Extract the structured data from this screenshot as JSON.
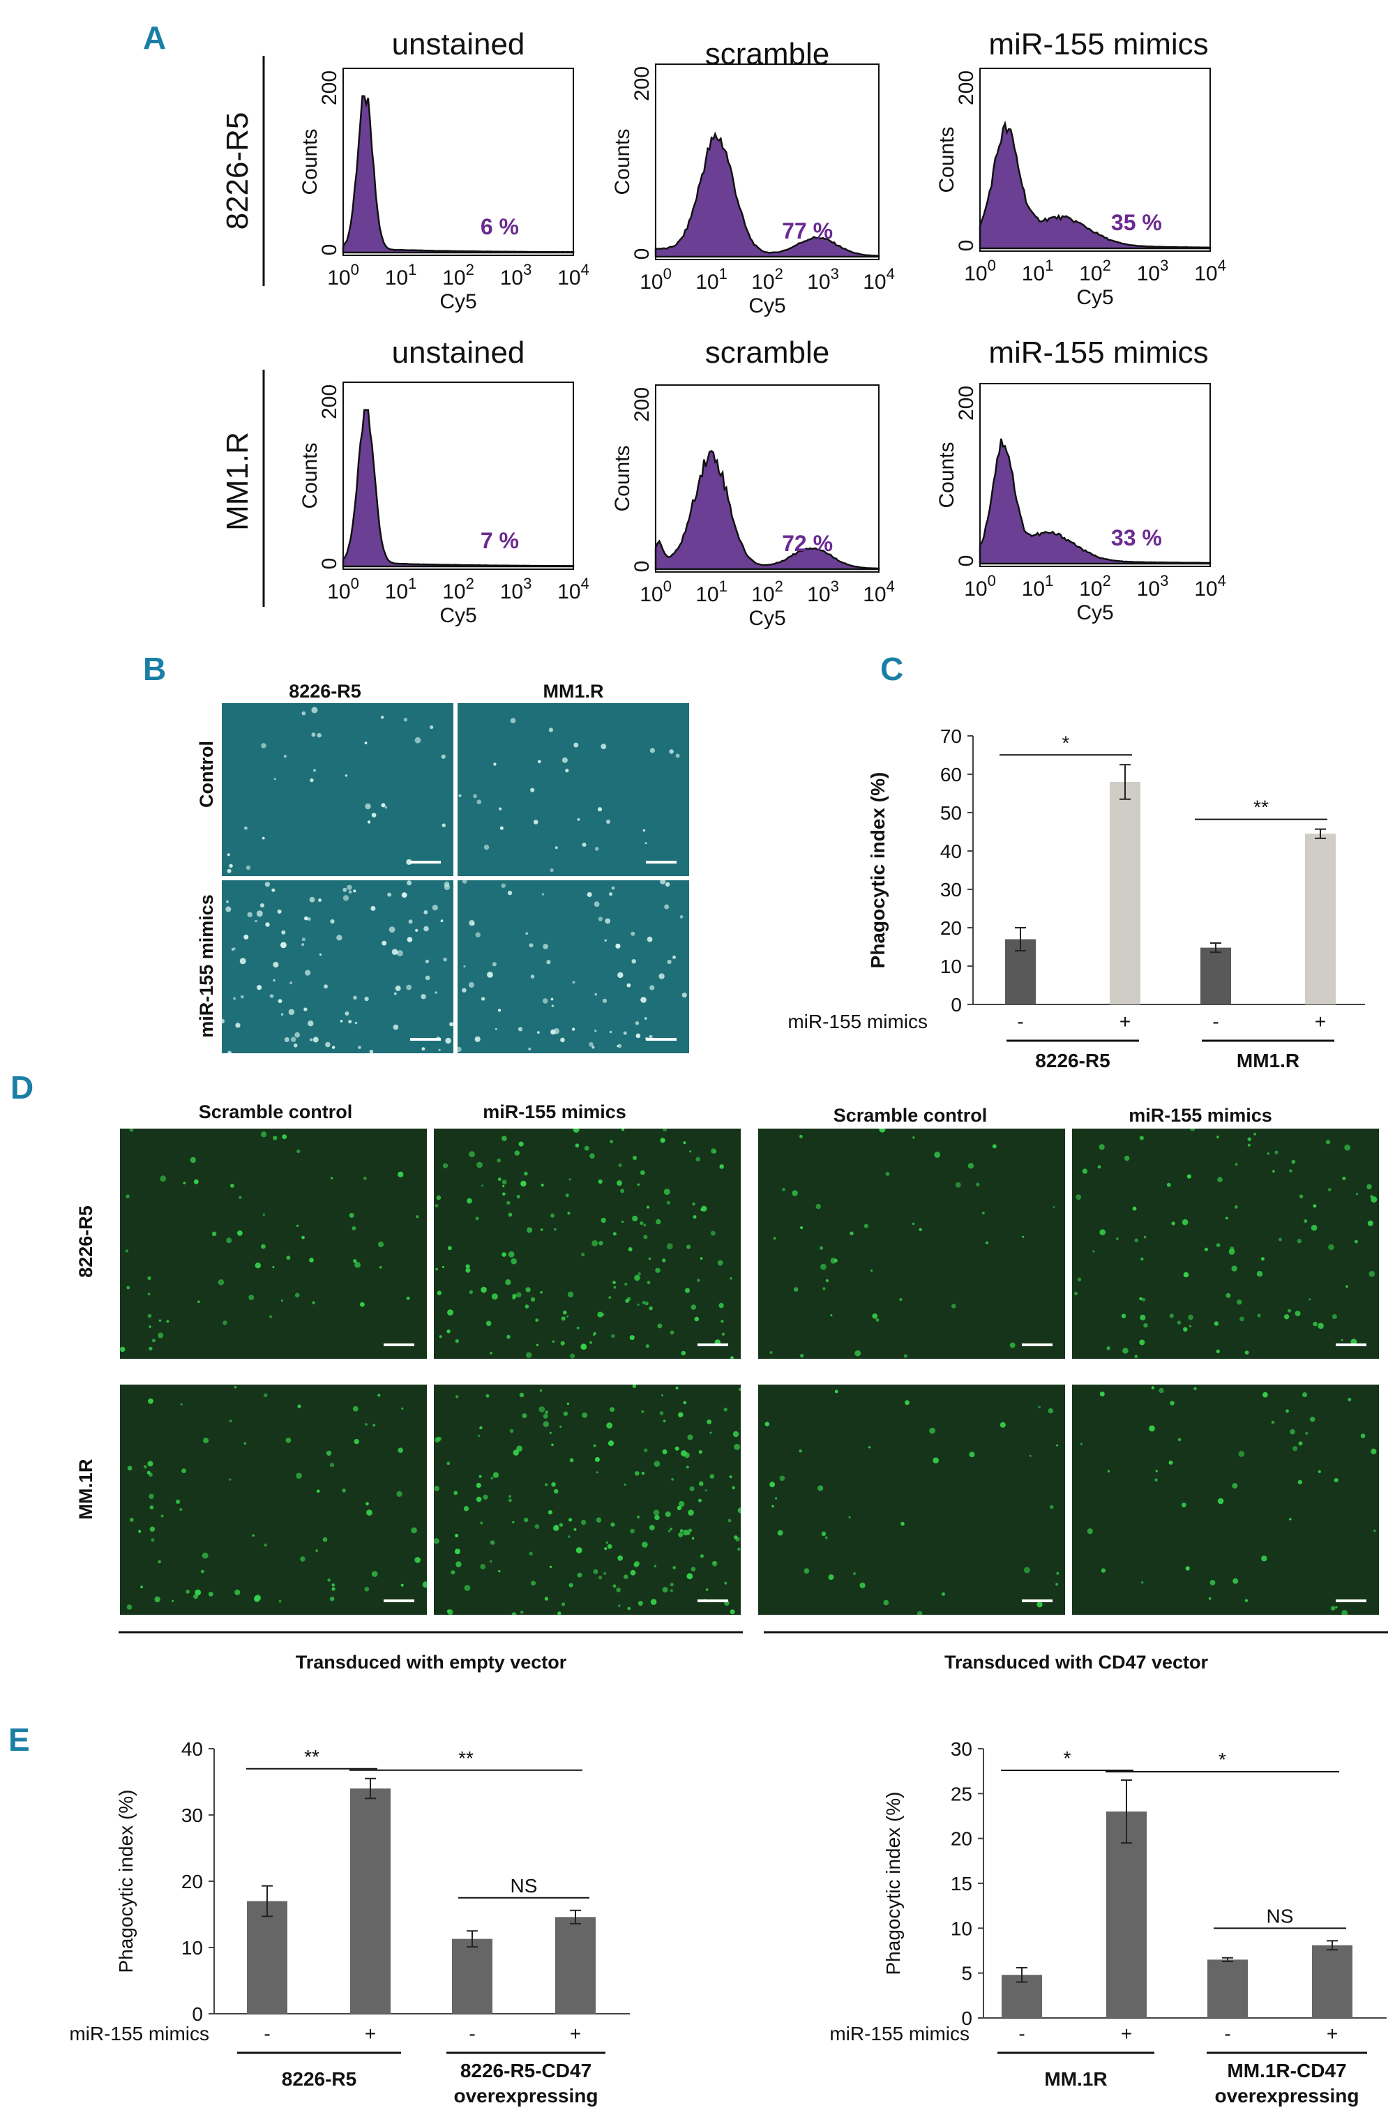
{
  "panel_labels": {
    "a": "A",
    "b": "B",
    "c": "C",
    "d": "D",
    "e": "E"
  },
  "panel_a": {
    "x_label": "Cy5",
    "y_label": "Counts",
    "y_ticks": [
      "0",
      "200"
    ],
    "x_ticks": [
      "0",
      "1",
      "2",
      "3",
      "4"
    ],
    "x_tick_base": "10",
    "histograms": [
      {
        "row": "8226-R5",
        "title": "unstained",
        "percent": "6 %"
      },
      {
        "row": "8226-R5",
        "title": "scramble",
        "percent": "77 %"
      },
      {
        "row": "8226-R5",
        "title": "miR-155 mimics",
        "percent": "35 %"
      },
      {
        "row": "MM1.R",
        "title": "unstained",
        "percent": "7 %"
      },
      {
        "row": "MM1.R",
        "title": "scramble",
        "percent": "72 %"
      },
      {
        "row": "MM1.R",
        "title": "miR-155 mimics",
        "percent": "33 %"
      }
    ],
    "rows": [
      "8226-R5",
      "MM1.R"
    ]
  },
  "panel_b": {
    "columns": [
      "8226-R5",
      "MM1.R"
    ],
    "rows": [
      "Control",
      "miR-155 mimics"
    ],
    "image_tint": "#1f6f78"
  },
  "panel_d": {
    "columns": [
      "Scramble control",
      "miR-155 mimics",
      "Scramble control",
      "miR-155 mimics"
    ],
    "rows": [
      "8226-R5",
      "MM.1R"
    ],
    "groups": [
      "Transduced with empty vector",
      "Transduced with CD47 vector"
    ],
    "image_tint": "#16341a"
  },
  "chart_data": [
    {
      "id": "C",
      "type": "bar",
      "ylabel": "Phagocytic index (%)",
      "ylim": [
        0,
        70
      ],
      "yticks": [
        0,
        10,
        20,
        30,
        40,
        50,
        60,
        70
      ],
      "row_label": "miR-155 mimics",
      "categories": [
        "-",
        "+",
        "-",
        "+"
      ],
      "groups": [
        "8226-R5",
        "MM1.R"
      ],
      "values": [
        17,
        58,
        14.8,
        44.5
      ],
      "errors": [
        3,
        4.5,
        1.2,
        1.2
      ],
      "colors": [
        "#595959",
        "#d0ccc6",
        "#595959",
        "#d0ccc6"
      ],
      "significance": [
        {
          "from": 0,
          "to": 1,
          "label": "*"
        },
        {
          "from": 2,
          "to": 3,
          "label": "**"
        }
      ]
    },
    {
      "id": "E1",
      "type": "bar",
      "ylabel": "Phagocytic index (%)",
      "ylim": [
        0,
        40
      ],
      "yticks": [
        0,
        10,
        20,
        30,
        40
      ],
      "row_label": "miR-155  mimics",
      "categories": [
        "-",
        "+",
        "-",
        "+"
      ],
      "groups": [
        "8226-R5",
        "8226-R5-CD47 overexpressing"
      ],
      "values": [
        17,
        34,
        11.3,
        14.6
      ],
      "errors": [
        2.3,
        1.5,
        1.2,
        1.0
      ],
      "colors": [
        "#666666",
        "#666666",
        "#666666",
        "#666666"
      ],
      "significance": [
        {
          "from": 0,
          "to": 1,
          "label": "**"
        },
        {
          "from": 1,
          "to": 3,
          "label": "**"
        },
        {
          "from": 2,
          "to": 3,
          "label": "NS"
        }
      ]
    },
    {
      "id": "E2",
      "type": "bar",
      "ylabel": "Phagocytic index (%)",
      "ylim": [
        0,
        30
      ],
      "yticks": [
        0,
        5,
        10,
        15,
        20,
        25,
        30
      ],
      "row_label": "miR-155  mimics",
      "categories": [
        "-",
        "+",
        "-",
        "+"
      ],
      "groups": [
        "MM.1R",
        "MM.1R-CD47 overexpressing"
      ],
      "values": [
        4.8,
        23,
        6.5,
        8.1
      ],
      "errors": [
        0.8,
        3.5,
        0.2,
        0.5
      ],
      "colors": [
        "#666666",
        "#666666",
        "#666666",
        "#666666"
      ],
      "significance": [
        {
          "from": 0,
          "to": 1,
          "label": "*"
        },
        {
          "from": 1,
          "to": 3,
          "label": "*"
        },
        {
          "from": 2,
          "to": 3,
          "label": "NS"
        }
      ]
    }
  ]
}
